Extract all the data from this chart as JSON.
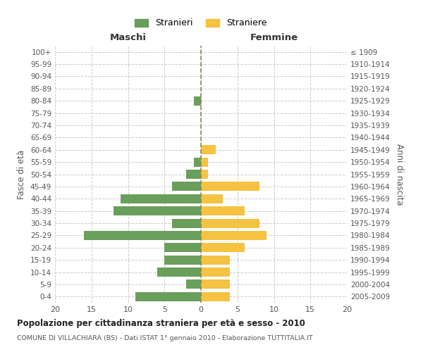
{
  "age_groups": [
    "100+",
    "95-99",
    "90-94",
    "85-89",
    "80-84",
    "75-79",
    "70-74",
    "65-69",
    "60-64",
    "55-59",
    "50-54",
    "45-49",
    "40-44",
    "35-39",
    "30-34",
    "25-29",
    "20-24",
    "15-19",
    "10-14",
    "5-9",
    "0-4"
  ],
  "birth_years": [
    "≤ 1909",
    "1910-1914",
    "1915-1919",
    "1920-1924",
    "1925-1929",
    "1930-1934",
    "1935-1939",
    "1940-1944",
    "1945-1949",
    "1950-1954",
    "1955-1959",
    "1960-1964",
    "1965-1969",
    "1970-1974",
    "1975-1979",
    "1980-1984",
    "1985-1989",
    "1990-1994",
    "1995-1999",
    "2000-2004",
    "2005-2009"
  ],
  "males": [
    0,
    0,
    0,
    0,
    1,
    0,
    0,
    0,
    0,
    1,
    2,
    4,
    11,
    12,
    4,
    16,
    5,
    5,
    6,
    2,
    9
  ],
  "females": [
    0,
    0,
    0,
    0,
    0,
    0,
    0,
    0,
    2,
    1,
    1,
    8,
    3,
    6,
    8,
    9,
    6,
    4,
    4,
    4,
    4
  ],
  "male_color": "#6a9e5b",
  "female_color": "#f5c242",
  "male_label": "Stranieri",
  "female_label": "Straniere",
  "title": "Popolazione per cittadinanza straniera per età e sesso - 2010",
  "subtitle": "COMUNE DI VILLACHIARA (BS) - Dati ISTAT 1° gennaio 2010 - Elaborazione TUTTITALIA.IT",
  "xlabel_left": "Maschi",
  "xlabel_right": "Femmine",
  "ylabel_left": "Fasce di età",
  "ylabel_right": "Anni di nascita",
  "xlim": [
    -20,
    20
  ],
  "xticks": [
    -20,
    -15,
    -10,
    -5,
    0,
    5,
    10,
    15,
    20
  ],
  "xticklabels": [
    "20",
    "15",
    "10",
    "5",
    "0",
    "5",
    "10",
    "15",
    "20"
  ],
  "background_color": "#ffffff",
  "grid_color": "#cccccc",
  "center_line_color": "#888855"
}
